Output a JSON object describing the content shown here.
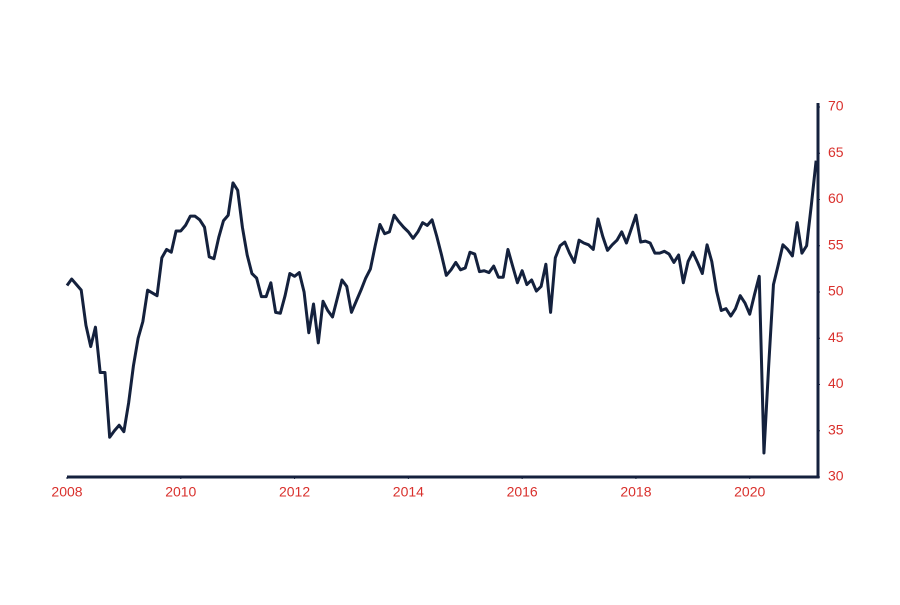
{
  "chart_data": {
    "type": "line",
    "x": [
      2008,
      2008.083,
      2008.167,
      2008.25,
      2008.333,
      2008.417,
      2008.5,
      2008.583,
      2008.667,
      2008.75,
      2008.833,
      2008.917,
      2009,
      2009.083,
      2009.167,
      2009.25,
      2009.333,
      2009.417,
      2009.5,
      2009.583,
      2009.667,
      2009.75,
      2009.833,
      2009.917,
      2010,
      2010.083,
      2010.167,
      2010.25,
      2010.333,
      2010.417,
      2010.5,
      2010.583,
      2010.667,
      2010.75,
      2010.833,
      2010.917,
      2011,
      2011.083,
      2011.167,
      2011.25,
      2011.333,
      2011.417,
      2011.5,
      2011.583,
      2011.667,
      2011.75,
      2011.833,
      2011.917,
      2012,
      2012.083,
      2012.167,
      2012.25,
      2012.333,
      2012.417,
      2012.5,
      2012.583,
      2012.667,
      2012.75,
      2012.833,
      2012.917,
      2013,
      2013.083,
      2013.167,
      2013.25,
      2013.333,
      2013.417,
      2013.5,
      2013.583,
      2013.667,
      2013.75,
      2013.833,
      2013.917,
      2014,
      2014.083,
      2014.167,
      2014.25,
      2014.333,
      2014.417,
      2014.5,
      2014.583,
      2014.667,
      2014.75,
      2014.833,
      2014.917,
      2015,
      2015.083,
      2015.167,
      2015.25,
      2015.333,
      2015.417,
      2015.5,
      2015.583,
      2015.667,
      2015.75,
      2015.833,
      2015.917,
      2016,
      2016.083,
      2016.167,
      2016.25,
      2016.333,
      2016.417,
      2016.5,
      2016.583,
      2016.667,
      2016.75,
      2016.833,
      2016.917,
      2017,
      2017.083,
      2017.167,
      2017.25,
      2017.333,
      2017.417,
      2017.5,
      2017.583,
      2017.667,
      2017.75,
      2017.833,
      2017.917,
      2018,
      2018.083,
      2018.167,
      2018.25,
      2018.333,
      2018.417,
      2018.5,
      2018.583,
      2018.667,
      2018.75,
      2018.833,
      2018.917,
      2019,
      2019.083,
      2019.167,
      2019.25,
      2019.333,
      2019.417,
      2019.5,
      2019.583,
      2019.667,
      2019.75,
      2019.833,
      2019.917,
      2020,
      2020.083,
      2020.167,
      2020.25,
      2020.333,
      2020.417,
      2020.5,
      2020.583,
      2020.667,
      2020.75,
      2020.833,
      2020.917,
      2021,
      2021.083,
      2021.167
    ],
    "series": [
      {
        "color": "#14213d",
        "values": [
          50.7,
          51.4,
          50.8,
          50.2,
          46.4,
          44.1,
          46.2,
          41.3,
          41.3,
          34.3,
          35.0,
          35.6,
          34.9,
          38.0,
          42.0,
          45.0,
          46.8,
          50.2,
          49.9,
          49.6,
          53.7,
          54.6,
          54.3,
          56.6,
          56.6,
          57.2,
          58.2,
          58.2,
          57.8,
          57.0,
          53.8,
          53.6,
          55.9,
          57.7,
          58.3,
          61.8,
          61.0,
          57.0,
          54.0,
          52.0,
          51.5,
          49.5,
          49.5,
          51.0,
          47.8,
          47.7,
          49.6,
          52.0,
          51.7,
          52.1,
          50.0,
          45.6,
          48.7,
          44.5,
          49.0,
          48.0,
          47.3,
          49.3,
          51.3,
          50.6,
          47.8,
          49.0,
          50.2,
          51.5,
          52.5,
          55.0,
          57.3,
          56.3,
          56.5,
          58.3,
          57.6,
          57.0,
          56.5,
          55.8,
          56.5,
          57.5,
          57.2,
          57.8,
          56.0,
          54.0,
          51.8,
          52.4,
          53.2,
          52.4,
          52.6,
          54.3,
          54.1,
          52.2,
          52.3,
          52.1,
          52.8,
          51.6,
          51.6,
          54.6,
          52.8,
          51.0,
          52.3,
          50.8,
          51.3,
          50.1,
          50.6,
          53.0,
          47.8,
          53.7,
          55.0,
          55.4,
          54.2,
          53.2,
          55.6,
          55.3,
          55.1,
          54.6,
          57.9,
          56.0,
          54.5,
          55.1,
          55.6,
          56.5,
          55.3,
          56.8,
          58.3,
          55.4,
          55.5,
          55.3,
          54.2,
          54.2,
          54.4,
          54.1,
          53.2,
          54.0,
          51.0,
          53.3,
          54.3,
          53.2,
          52.0,
          55.1,
          53.3,
          50.1,
          48.0,
          48.2,
          47.4,
          48.2,
          49.6,
          48.8,
          47.6,
          49.7,
          51.7,
          32.6,
          42.0,
          50.8,
          52.9,
          55.1,
          54.6,
          53.9,
          57.5,
          54.2,
          55.0,
          59.4,
          64.2
        ]
      }
    ],
    "xlim": [
      2008,
      2021.2
    ],
    "xticks": [
      2008,
      2010,
      2012,
      2014,
      2016,
      2018,
      2020
    ],
    "ylim": [
      30,
      70
    ],
    "yticks": [
      30,
      35,
      40,
      45,
      50,
      55,
      60,
      65,
      70
    ],
    "axis_color": "#14213d",
    "tick_color": "#d9302c"
  }
}
